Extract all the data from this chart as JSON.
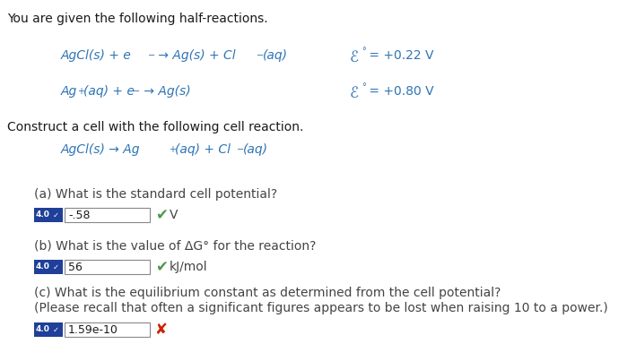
{
  "bg_color": "#ffffff",
  "teal_color": "#2e74b5",
  "teal_rxn": "#2e74b5",
  "black": "#1a1a1a",
  "grey_text": "#444444",
  "green_color": "#4a9a4a",
  "red_color": "#cc2200",
  "badge_bg": "#1f3f99",
  "input_bg": "#ffffff",
  "input_border": "#888888",
  "intro": "You are given the following half-reactions.",
  "construct": "Construct a cell with the following cell reaction.",
  "qa_label": "(a) What is the standard cell potential?",
  "qa_input": "-.58",
  "qa_unit": "V",
  "qb_label": "(b) What is the value of ΔG° for the reaction?",
  "qb_input": "56",
  "qb_unit": "kJ/mol",
  "qc_label1": "(c) What is the equilibrium constant as determined from the cell potential?",
  "qc_label2": "(Please recall that often a significant figures appears to be lost when raising 10 to a power.)",
  "qc_input": "1.59e-10",
  "fig_w": 7.09,
  "fig_h": 4.03,
  "dpi": 100
}
